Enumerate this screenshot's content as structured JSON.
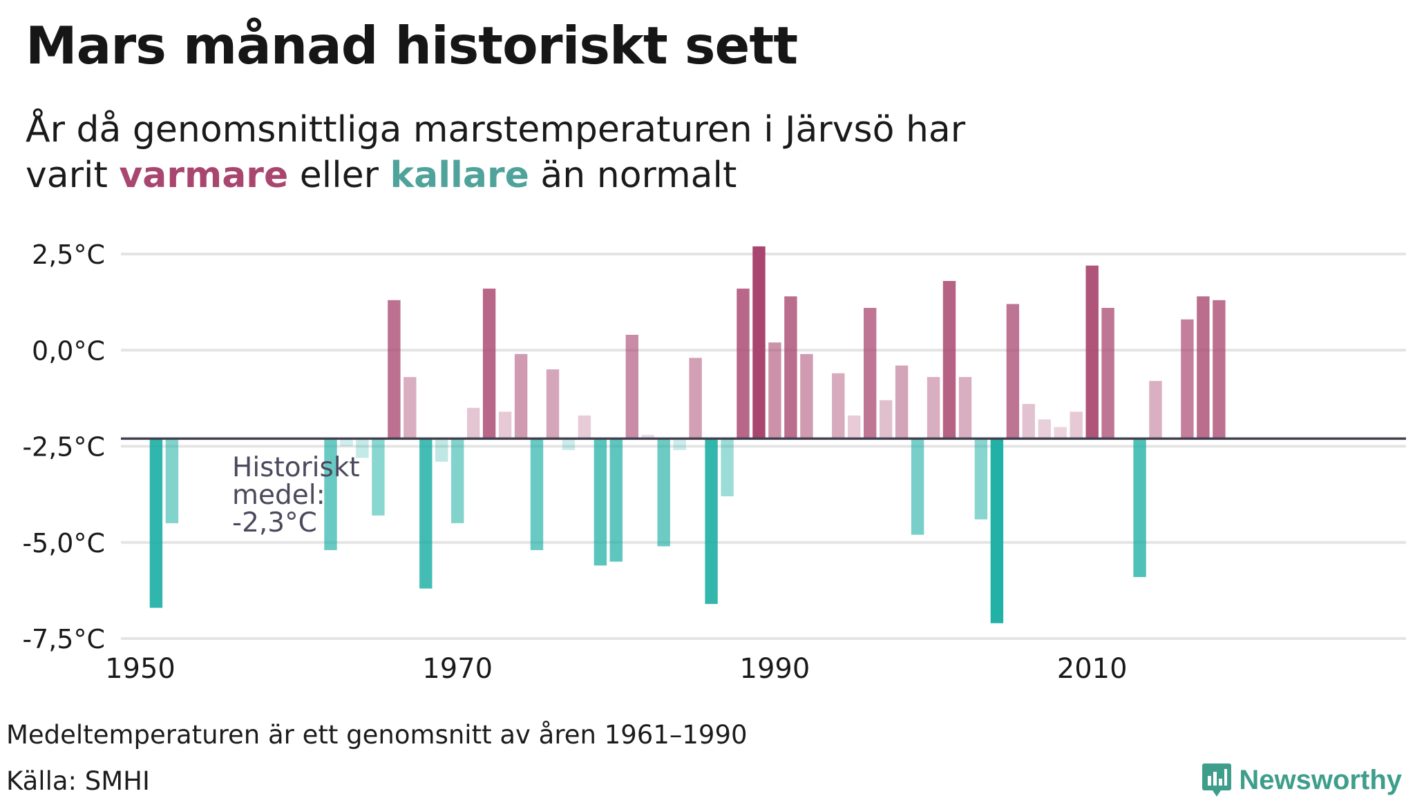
{
  "header": {
    "title": "Mars månad historiskt sett",
    "subtitle_line1": "År då genomsnittliga marstemperaturen i Järvsö har",
    "subtitle_line2_start": "varit",
    "subtitle_warm": "varmare",
    "subtitle_mid": "eller",
    "subtitle_cold": "kallare",
    "subtitle_end": "än normalt"
  },
  "footer": {
    "note": "Medeltemperaturen är ett genomsnitt av åren 1961–1990",
    "source": "Källa: SMHI",
    "brand": "Newsworthy"
  },
  "colors": {
    "warm": "#a8466f",
    "cold": "#1aaea3",
    "baseline": "#3f3f4f",
    "grid": "#e4e4e4",
    "brand": "#3e9e8b"
  },
  "chart_data": {
    "type": "bar",
    "title": "Mars månad historiskt sett",
    "xlabel": "",
    "ylabel": "",
    "x_ticks": [
      1950,
      1970,
      1990,
      2010
    ],
    "y_ticks": [
      2.5,
      0.0,
      -2.5,
      -5.0,
      -7.5
    ],
    "y_tick_labels": [
      "2,5°C",
      "0,0°C",
      "-2,5°C",
      "-5,0°C",
      "-7,5°C"
    ],
    "ylim": [
      -7.5,
      2.5
    ],
    "xlim": [
      1949,
      2027
    ],
    "baseline": -2.3,
    "annotation": [
      "Historiskt",
      "medel:",
      "-2,3°C"
    ],
    "grid": true,
    "legend": "none",
    "years": [
      1951,
      1952,
      1962,
      1963,
      1964,
      1965,
      1966,
      1967,
      1968,
      1969,
      1970,
      1971,
      1972,
      1973,
      1974,
      1975,
      1976,
      1977,
      1978,
      1979,
      1980,
      1981,
      1982,
      1983,
      1984,
      1985,
      1986,
      1987,
      1988,
      1989,
      1990,
      1991,
      1992,
      1993,
      1994,
      1995,
      1996,
      1997,
      1998,
      1999,
      2000,
      2001,
      2002,
      2003,
      2004,
      2005,
      2006,
      2007,
      2008,
      2009,
      2010,
      2011,
      2013,
      2014,
      2016,
      2017,
      2018,
      2019,
      2020,
      2021
    ],
    "values": [
      -6.7,
      -4.5,
      -5.2,
      -2.5,
      -2.8,
      -4.3,
      1.3,
      -0.7,
      -6.2,
      -2.9,
      -4.5,
      -1.5,
      1.6,
      -1.6,
      -0.1,
      -5.2,
      -0.5,
      -2.6,
      -1.7,
      -5.6,
      -5.5,
      0.4,
      -2.2,
      -5.1,
      -2.6,
      -0.2,
      -6.6,
      -3.8,
      1.6,
      2.7,
      0.2,
      1.4,
      -0.1,
      -2.3,
      -0.6,
      -1.7,
      1.1,
      -1.3,
      -0.4,
      -4.8,
      -0.7,
      1.8,
      -0.7,
      -4.4,
      -7.1,
      1.2,
      -1.4,
      -1.8,
      -2.0,
      -1.6,
      2.2,
      1.1,
      -5.9,
      -0.8,
      0.8,
      1.4,
      1.3,
      -2.3,
      -2.3,
      -2.3
    ]
  }
}
